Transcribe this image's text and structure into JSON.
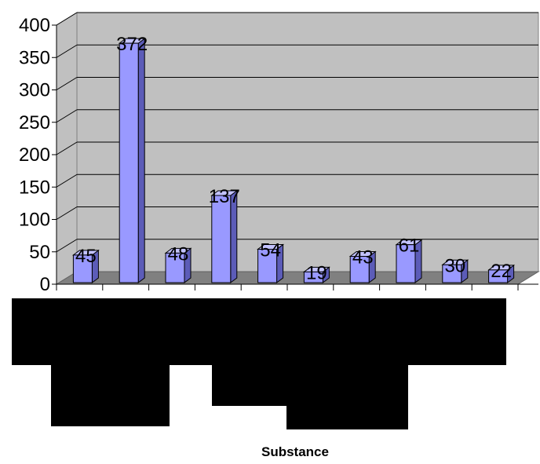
{
  "chart_data": {
    "type": "bar",
    "title": "",
    "xlabel": "Substance",
    "ylabel": "",
    "ylim": [
      0,
      400
    ],
    "yticks": [
      0,
      50,
      100,
      150,
      200,
      250,
      300,
      350,
      400
    ],
    "values": [
      45,
      372,
      48,
      137,
      54,
      19,
      43,
      61,
      30,
      22
    ],
    "grid": true,
    "legend": "none",
    "colors": {
      "bar_front": "#9999ff",
      "bar_top": "#c3c3ff",
      "bar_side": "#5c5cb8",
      "plot_back": "#c0c0c0",
      "plot_floor": "#808080",
      "gridline": "#000000"
    }
  }
}
